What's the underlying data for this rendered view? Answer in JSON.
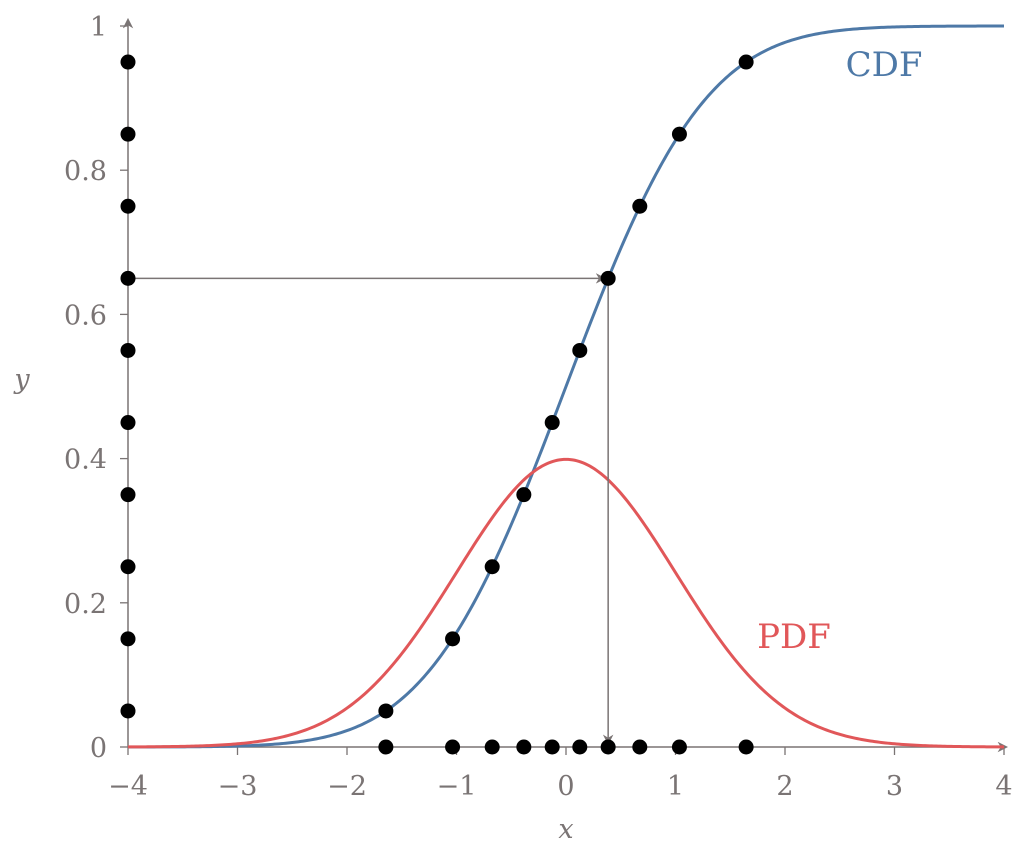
{
  "chart_data": {
    "type": "line",
    "title": "",
    "xlabel": "x",
    "ylabel": "y",
    "xlim": [
      -4,
      4
    ],
    "ylim": [
      0,
      1
    ],
    "x_ticks": [
      "−4",
      "−3",
      "−2",
      "−1",
      "0",
      "1",
      "2",
      "3",
      "4"
    ],
    "y_ticks": [
      "0",
      "0.2",
      "0.4",
      "0.6",
      "0.8",
      "1"
    ],
    "grid": false,
    "series": [
      {
        "name": "CDF",
        "function": "normal_cdf",
        "mu": 0,
        "sigma": 1,
        "color": "#4e79a7"
      },
      {
        "name": "PDF",
        "function": "normal_pdf",
        "mu": 0,
        "sigma": 1,
        "color": "#e15759"
      }
    ],
    "sample_points": {
      "color": "#000000",
      "quantiles": [
        0.05,
        0.15,
        0.25,
        0.35,
        0.45,
        0.55,
        0.65,
        0.75,
        0.85,
        0.95
      ],
      "x": [
        -1.645,
        -1.036,
        -0.674,
        -0.385,
        -0.126,
        0.126,
        0.385,
        0.674,
        1.036,
        1.645
      ]
    },
    "highlight": {
      "quantile": 0.65,
      "x": 0.385,
      "color": "#7a7474"
    },
    "axis_color": "#7a7474"
  }
}
